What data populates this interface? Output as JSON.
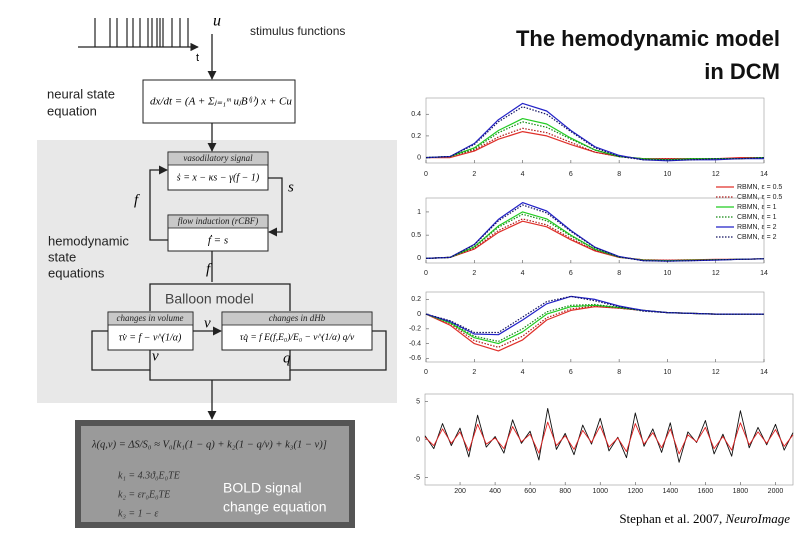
{
  "title_lines": [
    "The hemodynamic model",
    "in DCM"
  ],
  "citation": {
    "authors": "Stephan et al. 2007,",
    "journal": "NeuroImage"
  },
  "diagram": {
    "stimulus": {
      "u": "u",
      "t": "t",
      "label": "stimulus functions"
    },
    "neural": {
      "label_lines": [
        "neural state",
        "equation"
      ],
      "equation": "dx/dt = (A + Σⱼ₌₁ᵐ uⱼB⁽ʲ⁾) x + Cu"
    },
    "vasodilatory": {
      "header": "vasodilatory signal",
      "equation": "ṡ = x − κs − γ(f − 1)"
    },
    "flow": {
      "header": "flow induction (rCBF)",
      "equation": "ḟ = s"
    },
    "signals": {
      "s": "s",
      "f_left": "f",
      "f_bottom": "f",
      "v_right": "v",
      "v_bottom": "v",
      "q": "q"
    },
    "hemodynamic": {
      "label_lines": [
        "hemodynamic",
        "state",
        "equations"
      ]
    },
    "balloon": "Balloon model",
    "volume": {
      "header": "changes in volume",
      "equation": "τv̇ = f − v^(1/α)"
    },
    "dhb": {
      "header": "changes in dHb",
      "equation": "τq̇ = f E(f,E₀)/E₀ − v^(1/α) q/v"
    },
    "bold": {
      "equation": "λ(q,v) = ΔS/S₀ ≈ V₀[k₁(1 − q) + k₂(1 − q/v) + k₃(1 − v)]",
      "k_lines": [
        "k₁ = 4.3ϑ₀E₀TE",
        "k₂ = εr₀E₀TE",
        "k₃ = 1 − ε"
      ],
      "label_lines": [
        "BOLD signal",
        "change equation"
      ]
    }
  },
  "chart_data": [
    {
      "type": "line",
      "x": [
        0,
        1,
        2,
        3,
        4,
        5,
        6,
        7,
        8,
        9,
        10,
        11,
        12,
        13,
        14
      ],
      "xlim": [
        0,
        14
      ],
      "xticks": [
        0,
        2,
        4,
        6,
        8,
        10,
        12,
        14
      ],
      "ylim": [
        -0.05,
        0.55
      ],
      "yticks": [
        0,
        0.2,
        0.4
      ],
      "series": [
        {
          "name": "RBMN, ε = 0.5",
          "color": "#e0302a",
          "style": "solid",
          "values": [
            0,
            0,
            0.06,
            0.17,
            0.24,
            0.2,
            0.12,
            0.05,
            0.01,
            -0.01,
            -0.01,
            -0.01,
            -0.01,
            0,
            0
          ]
        },
        {
          "name": "CBMN, ε = 0.5",
          "color": "#b01818",
          "style": "dotted",
          "values": [
            0,
            0.01,
            0.07,
            0.19,
            0.27,
            0.23,
            0.14,
            0.05,
            0.01,
            -0.01,
            -0.01,
            -0.01,
            -0.01,
            -0.01,
            0
          ]
        },
        {
          "name": "RBMN, ε = 1",
          "color": "#22cc22",
          "style": "solid",
          "values": [
            0,
            0.01,
            0.09,
            0.25,
            0.36,
            0.31,
            0.18,
            0.07,
            0.01,
            -0.01,
            -0.02,
            -0.01,
            -0.01,
            -0.01,
            0
          ]
        },
        {
          "name": "CBMN, ε = 1",
          "color": "#118811",
          "style": "dotted",
          "values": [
            0,
            0.01,
            0.08,
            0.23,
            0.33,
            0.28,
            0.17,
            0.07,
            0.01,
            -0.01,
            -0.02,
            -0.01,
            -0.01,
            -0.01,
            0
          ]
        },
        {
          "name": "RBMN, ε = 2",
          "color": "#2222c8",
          "style": "solid",
          "values": [
            0,
            0.01,
            0.13,
            0.35,
            0.5,
            0.43,
            0.25,
            0.1,
            0.02,
            -0.02,
            -0.03,
            -0.02,
            -0.02,
            -0.01,
            -0.01
          ]
        },
        {
          "name": "CBMN, ε = 2",
          "color": "#101060",
          "style": "dotted",
          "values": [
            0,
            0.01,
            0.12,
            0.33,
            0.47,
            0.4,
            0.24,
            0.09,
            0.01,
            -0.02,
            -0.02,
            -0.02,
            -0.01,
            -0.01,
            0
          ]
        }
      ]
    },
    {
      "type": "line",
      "x": [
        0,
        1,
        2,
        3,
        4,
        5,
        6,
        7,
        8,
        9,
        10,
        11,
        12,
        13,
        14
      ],
      "xlim": [
        0,
        14
      ],
      "xticks": [
        0,
        2,
        4,
        6,
        8,
        10,
        12,
        14
      ],
      "ylim": [
        -0.1,
        1.3
      ],
      "yticks": [
        0,
        0.5,
        1
      ],
      "series": [
        {
          "color": "#e0302a",
          "style": "solid",
          "values": [
            0,
            0.02,
            0.2,
            0.56,
            0.8,
            0.68,
            0.4,
            0.16,
            0.02,
            -0.03,
            -0.04,
            -0.03,
            -0.02,
            -0.02,
            -0.01
          ]
        },
        {
          "color": "#b01818",
          "style": "dotted",
          "values": [
            0,
            0.02,
            0.21,
            0.6,
            0.85,
            0.72,
            0.43,
            0.17,
            0.03,
            -0.03,
            -0.04,
            -0.03,
            -0.03,
            -0.02,
            -0.01
          ]
        },
        {
          "color": "#22cc22",
          "style": "solid",
          "values": [
            0,
            0.02,
            0.25,
            0.7,
            1.0,
            0.85,
            0.5,
            0.2,
            0.03,
            -0.04,
            -0.05,
            -0.04,
            -0.03,
            -0.02,
            -0.01
          ]
        },
        {
          "color": "#118811",
          "style": "dotted",
          "values": [
            0,
            0.02,
            0.24,
            0.67,
            0.95,
            0.81,
            0.48,
            0.19,
            0.03,
            -0.04,
            -0.05,
            -0.04,
            -0.03,
            -0.02,
            -0.01
          ]
        },
        {
          "color": "#2222c8",
          "style": "solid",
          "values": [
            0,
            0.02,
            0.3,
            0.84,
            1.2,
            1.02,
            0.6,
            0.24,
            0.04,
            -0.05,
            -0.06,
            -0.05,
            -0.04,
            -0.02,
            -0.01
          ]
        },
        {
          "color": "#101060",
          "style": "dotted",
          "values": [
            0,
            0.02,
            0.29,
            0.81,
            1.15,
            0.98,
            0.58,
            0.23,
            0.03,
            -0.05,
            -0.06,
            -0.05,
            -0.03,
            -0.02,
            -0.01
          ]
        }
      ]
    },
    {
      "type": "line",
      "x": [
        0,
        1,
        2,
        3,
        4,
        5,
        6,
        7,
        8,
        9,
        10,
        11,
        12,
        13,
        14
      ],
      "xlim": [
        0,
        14
      ],
      "xticks": [
        0,
        2,
        4,
        6,
        8,
        10,
        12,
        14
      ],
      "ylim": [
        -0.65,
        0.3
      ],
      "yticks": [
        0.2,
        0,
        -0.2,
        -0.4,
        -0.6
      ],
      "series": [
        {
          "color": "#e0302a",
          "style": "solid",
          "values": [
            0,
            -0.15,
            -0.4,
            -0.5,
            -0.35,
            -0.08,
            0.05,
            0.1,
            0.08,
            0.05,
            0.02,
            0.01,
            0,
            0,
            0
          ]
        },
        {
          "color": "#b01818",
          "style": "dotted",
          "values": [
            0,
            -0.13,
            -0.36,
            -0.45,
            -0.3,
            -0.05,
            0.07,
            0.11,
            0.08,
            0.05,
            0.02,
            0.01,
            0,
            0,
            0
          ]
        },
        {
          "color": "#22cc22",
          "style": "solid",
          "values": [
            0,
            -0.12,
            -0.32,
            -0.4,
            -0.24,
            0,
            0.1,
            0.12,
            0.09,
            0.05,
            0.02,
            0.01,
            0,
            0,
            0
          ]
        },
        {
          "color": "#118811",
          "style": "dotted",
          "values": [
            0,
            -0.11,
            -0.3,
            -0.37,
            -0.2,
            0.03,
            0.12,
            0.13,
            0.09,
            0.05,
            0.02,
            0.01,
            0,
            0,
            0
          ]
        },
        {
          "color": "#2222c8",
          "style": "solid",
          "values": [
            0,
            -0.1,
            -0.27,
            -0.28,
            -0.08,
            0.14,
            0.24,
            0.2,
            0.11,
            0.05,
            0.02,
            0.01,
            0,
            0,
            0
          ]
        },
        {
          "color": "#101060",
          "style": "dotted",
          "values": [
            0,
            -0.09,
            -0.25,
            -0.25,
            -0.04,
            0.17,
            0.24,
            0.18,
            0.1,
            0.04,
            0.02,
            0.01,
            0,
            0,
            0
          ]
        }
      ]
    },
    {
      "type": "line",
      "x": [
        0,
        50,
        100,
        150,
        200,
        250,
        300,
        350,
        400,
        450,
        500,
        550,
        600,
        650,
        700,
        750,
        800,
        850,
        900,
        950,
        1000,
        1050,
        1100,
        1150,
        1200,
        1250,
        1300,
        1350,
        1400,
        1450,
        1500,
        1550,
        1600,
        1650,
        1700,
        1750,
        1800,
        1850,
        1900,
        1950,
        2000,
        2050,
        2100
      ],
      "xlim": [
        0,
        2100
      ],
      "xticks": [
        200,
        400,
        600,
        800,
        1000,
        1200,
        1400,
        1600,
        1800,
        2000
      ],
      "ylim": [
        -6,
        6
      ],
      "yticks": [
        5,
        0,
        -5
      ],
      "series": [
        {
          "color": "#111111",
          "style": "solid",
          "values": [
            0.5,
            -1.2,
            2.1,
            -0.8,
            1.5,
            -2.3,
            3.2,
            -1.0,
            0.4,
            -1.8,
            2.6,
            -0.5,
            1.1,
            -2.7,
            4.1,
            -1.3,
            0.8,
            -2.0,
            1.9,
            -0.6,
            2.8,
            -1.5,
            0.3,
            -2.4,
            3.5,
            -0.9,
            1.4,
            -1.7,
            2.2,
            -3.0,
            1.0,
            -0.4,
            2.5,
            -1.9,
            0.7,
            -2.2,
            3.8,
            -1.1,
            1.6,
            -0.7,
            2.0,
            -1.4,
            0.9
          ]
        },
        {
          "color": "#e02020",
          "style": "solid",
          "values": [
            0.3,
            -0.8,
            1.4,
            -0.5,
            1.0,
            -1.5,
            2.0,
            -0.6,
            0.2,
            -1.2,
            1.7,
            -0.3,
            0.7,
            -1.8,
            2.3,
            -0.8,
            0.5,
            -1.3,
            1.2,
            -0.4,
            1.8,
            -1.0,
            0.2,
            -1.6,
            2.1,
            -0.6,
            0.9,
            -1.1,
            1.4,
            -1.9,
            0.6,
            -0.3,
            1.6,
            -1.2,
            0.4,
            -1.4,
            2.2,
            -0.7,
            1.0,
            -0.5,
            1.3,
            -0.9,
            0.6
          ]
        }
      ]
    }
  ]
}
